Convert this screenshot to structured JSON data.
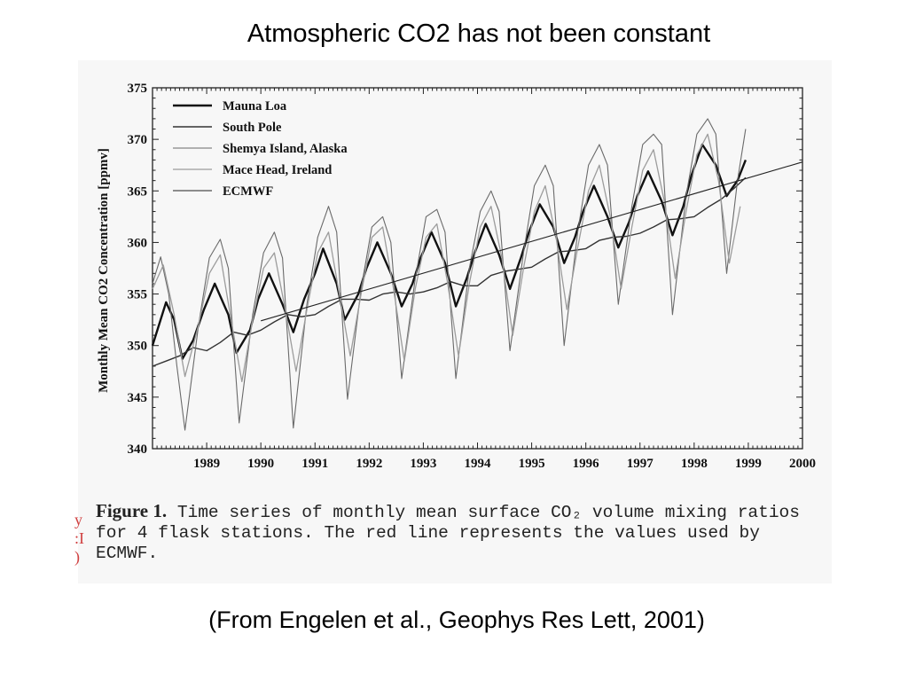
{
  "slide": {
    "title": "Atmospheric CO2 has not been constant",
    "citation": "(From Engelen et al., Geophys Res Lett, 2001)"
  },
  "caption": {
    "label": "Figure 1.",
    "text": "Time series of monthly mean surface CO₂ volume mixing ratios for 4 flask stations. The red line represents the values used by ECMWF."
  },
  "margin_fragment": "y\n:I\n)",
  "chart_data": {
    "type": "line",
    "title": "",
    "xlabel": "",
    "ylabel": "Monthly Mean CO2 Concentration [ppmv]",
    "xlim": [
      1988.0,
      2000.0
    ],
    "ylim": [
      340,
      375
    ],
    "x_ticks": [
      1989,
      1990,
      1991,
      1992,
      1993,
      1994,
      1995,
      1996,
      1997,
      1998,
      1999,
      2000
    ],
    "y_ticks": [
      340,
      345,
      350,
      355,
      360,
      365,
      370,
      375
    ],
    "grid": false,
    "legend_position": "top-left",
    "series": [
      {
        "name": "Mauna Loa",
        "color": "#111111",
        "x": [
          1988.0,
          1988.25,
          1988.4,
          1988.55,
          1988.75,
          1988.95,
          1989.15,
          1989.4,
          1989.55,
          1989.8,
          1989.95,
          1990.15,
          1990.4,
          1990.6,
          1990.8,
          1991.0,
          1991.15,
          1991.4,
          1991.55,
          1991.8,
          1991.95,
          1992.15,
          1992.4,
          1992.6,
          1992.8,
          1992.95,
          1993.15,
          1993.4,
          1993.6,
          1993.8,
          1993.95,
          1994.15,
          1994.4,
          1994.6,
          1994.8,
          1994.95,
          1995.15,
          1995.4,
          1995.6,
          1995.8,
          1995.95,
          1996.15,
          1996.4,
          1996.6,
          1996.8,
          1996.95,
          1997.15,
          1997.4,
          1997.6,
          1997.8,
          1997.95,
          1998.15,
          1998.4,
          1998.6,
          1998.8,
          1998.95
        ],
        "y": [
          350.0,
          354.2,
          352.5,
          348.7,
          350.5,
          353.5,
          356.0,
          353.0,
          349.3,
          351.5,
          354.5,
          357.0,
          354.0,
          351.3,
          354.5,
          357.0,
          359.4,
          356.0,
          352.5,
          355.0,
          357.5,
          360.0,
          357.0,
          353.8,
          356.0,
          358.5,
          361.0,
          358.0,
          353.8,
          356.5,
          359.0,
          361.8,
          358.8,
          355.5,
          358.5,
          361.0,
          363.7,
          361.5,
          358.0,
          360.5,
          363.0,
          365.5,
          362.5,
          359.5,
          362.0,
          364.5,
          366.9,
          364.0,
          360.7,
          363.5,
          366.5,
          369.5,
          367.5,
          364.5,
          366.0,
          368.0
        ]
      },
      {
        "name": "South Pole",
        "color": "#333333",
        "x": [
          1988.0,
          1988.25,
          1988.5,
          1988.75,
          1989.0,
          1989.25,
          1989.5,
          1989.75,
          1990.0,
          1990.25,
          1990.5,
          1990.75,
          1991.0,
          1991.25,
          1991.5,
          1991.75,
          1992.0,
          1992.25,
          1992.5,
          1992.75,
          1993.0,
          1993.25,
          1993.5,
          1993.75,
          1994.0,
          1994.25,
          1994.5,
          1994.75,
          1995.0,
          1995.25,
          1995.5,
          1995.75,
          1996.0,
          1996.25,
          1996.5,
          1996.75,
          1997.0,
          1997.25,
          1997.5,
          1997.75,
          1998.0,
          1998.25,
          1998.5,
          1998.75,
          1998.95
        ],
        "y": [
          348.0,
          348.5,
          349.0,
          349.8,
          349.5,
          350.3,
          351.3,
          351.0,
          351.5,
          352.3,
          353.0,
          352.8,
          353.0,
          353.8,
          354.5,
          354.5,
          354.4,
          355.0,
          355.2,
          355.0,
          355.2,
          355.6,
          356.2,
          355.8,
          355.8,
          356.8,
          357.2,
          357.4,
          357.6,
          358.4,
          359.1,
          359.2,
          359.4,
          360.2,
          360.5,
          360.6,
          360.9,
          361.5,
          362.2,
          362.3,
          362.5,
          363.4,
          364.2,
          365.3,
          366.3
        ]
      },
      {
        "name": "Shemya Island, Alaska",
        "color": "#6a6a6a",
        "x": [
          1988.0,
          1988.15,
          1988.3,
          1988.45,
          1988.6,
          1988.85,
          1989.05,
          1989.25,
          1989.4,
          1989.6,
          1989.85,
          1990.05,
          1990.25,
          1990.4,
          1990.6,
          1990.85,
          1991.05,
          1991.25,
          1991.4,
          1991.6,
          1991.85,
          1992.05,
          1992.25,
          1992.4,
          1992.6,
          1992.85,
          1993.05,
          1993.25,
          1993.4,
          1993.6,
          1993.85,
          1994.05,
          1994.25,
          1994.4,
          1994.6,
          1994.85,
          1995.05,
          1995.25,
          1995.4,
          1995.6,
          1995.85,
          1996.05,
          1996.25,
          1996.4,
          1996.6,
          1996.85,
          1997.05,
          1997.25,
          1997.4,
          1997.6,
          1997.85,
          1998.05,
          1998.25,
          1998.4,
          1998.6,
          1998.8,
          1998.95
        ],
        "y": [
          356.0,
          358.6,
          355.0,
          348.0,
          341.8,
          352.0,
          358.5,
          360.3,
          357.5,
          342.5,
          353.0,
          359.0,
          361.0,
          358.5,
          342.0,
          354.0,
          360.5,
          363.5,
          361.0,
          344.8,
          355.5,
          361.5,
          362.5,
          360.0,
          346.8,
          356.5,
          362.5,
          363.2,
          361.0,
          346.8,
          357.5,
          363.0,
          365.0,
          363.0,
          349.5,
          359.0,
          365.5,
          367.5,
          365.5,
          350.0,
          361.0,
          367.5,
          369.5,
          367.5,
          354.0,
          363.5,
          369.5,
          370.5,
          369.5,
          353.0,
          364.5,
          370.5,
          372.0,
          370.5,
          357.0,
          366.0,
          371.0
        ]
      },
      {
        "name": "Mace Head, Ireland",
        "color": "#9c9c9c",
        "x": [
          1988.0,
          1988.2,
          1988.4,
          1988.6,
          1988.85,
          1989.05,
          1989.25,
          1989.45,
          1989.65,
          1989.85,
          1990.05,
          1990.25,
          1990.45,
          1990.65,
          1990.85,
          1991.05,
          1991.25,
          1991.45,
          1991.65,
          1991.85,
          1992.05,
          1992.25,
          1992.45,
          1992.65,
          1992.85,
          1993.05,
          1993.25,
          1993.45,
          1993.65,
          1993.85,
          1994.05,
          1994.25,
          1994.45,
          1994.65,
          1994.85,
          1995.05,
          1995.25,
          1995.45,
          1995.65,
          1995.85,
          1996.05,
          1996.25,
          1996.45,
          1996.65,
          1996.85,
          1997.05,
          1997.25,
          1997.45,
          1997.65,
          1997.85,
          1998.05,
          1998.25,
          1998.45,
          1998.65,
          1998.85
        ],
        "y": [
          355.5,
          357.8,
          353.0,
          347.0,
          352.0,
          357.0,
          358.8,
          352.5,
          346.5,
          352.5,
          357.5,
          359.0,
          353.5,
          347.5,
          353.5,
          359.0,
          361.0,
          355.0,
          349.0,
          355.0,
          360.5,
          361.5,
          355.5,
          348.5,
          355.5,
          360.5,
          361.8,
          356.0,
          349.0,
          356.0,
          361.5,
          363.5,
          358.5,
          351.0,
          357.5,
          363.0,
          365.5,
          360.5,
          353.5,
          359.5,
          365.0,
          367.5,
          362.5,
          355.5,
          361.5,
          367.0,
          369.0,
          364.0,
          356.5,
          363.0,
          368.5,
          370.5,
          366.0,
          358.0,
          363.5
        ]
      },
      {
        "name": "ECMWF",
        "color": "#222222",
        "x": [
          1990.0,
          2000.0
        ],
        "y": [
          352.4,
          367.8
        ]
      }
    ]
  }
}
